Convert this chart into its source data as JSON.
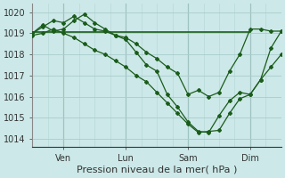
{
  "background_color": "#cce8e8",
  "grid_color": "#aacccc",
  "line_color": "#1a5c1a",
  "marker_color": "#1a5c1a",
  "ylabel_ticks": [
    1014,
    1015,
    1016,
    1017,
    1018,
    1019,
    1020
  ],
  "ylim": [
    1013.6,
    1020.4
  ],
  "xlim": [
    0,
    96
  ],
  "xlabel": "Pression niveau de la mer( hPa )",
  "xlabel_fontsize": 8,
  "tick_fontsize": 7,
  "vlines_x": [
    12,
    36,
    60,
    84
  ],
  "vlines_labels": [
    "Ven",
    "Lun",
    "Sam",
    "Dim"
  ],
  "series1_flat": {
    "x": [
      0,
      84
    ],
    "y": [
      1019.05,
      1019.05
    ]
  },
  "series2_zigzag": {
    "x": [
      0,
      4,
      8,
      12,
      16,
      20,
      24,
      28,
      32,
      36,
      40,
      44,
      48,
      52,
      56,
      60,
      64,
      68,
      72,
      76,
      80,
      84,
      88,
      92,
      96
    ],
    "y": [
      1019.0,
      1019.4,
      1019.1,
      1019.2,
      1019.6,
      1019.9,
      1019.5,
      1019.2,
      1018.9,
      1018.8,
      1018.5,
      1018.1,
      1017.8,
      1017.4,
      1017.1,
      1016.1,
      1016.3,
      1016.0,
      1016.2,
      1017.2,
      1018.0,
      1019.2,
      1019.2,
      1019.1,
      1019.1
    ]
  },
  "series3_descent": {
    "x": [
      0,
      4,
      8,
      12,
      16,
      20,
      24,
      28,
      32,
      36,
      40,
      44,
      48,
      52,
      56,
      60,
      64,
      68,
      72,
      76,
      80,
      84,
      88,
      92,
      96
    ],
    "y": [
      1018.9,
      1019.0,
      1019.2,
      1019.0,
      1018.8,
      1018.5,
      1018.2,
      1018.0,
      1017.7,
      1017.4,
      1017.0,
      1016.7,
      1016.2,
      1015.7,
      1015.2,
      1014.7,
      1014.3,
      1014.35,
      1014.4,
      1015.2,
      1015.9,
      1016.1,
      1016.8,
      1017.4,
      1018.0
    ]
  },
  "series4_upper": {
    "x": [
      0,
      4,
      8,
      12,
      16,
      20,
      24,
      28,
      32,
      36,
      40,
      44,
      48,
      52,
      56,
      60,
      64,
      68,
      72,
      76,
      80,
      84,
      88,
      92,
      96
    ],
    "y": [
      1019.0,
      1019.3,
      1019.6,
      1019.5,
      1019.8,
      1019.5,
      1019.2,
      1019.1,
      1018.9,
      1018.7,
      1018.1,
      1017.5,
      1017.2,
      1016.1,
      1015.5,
      1014.8,
      1014.35,
      1014.3,
      1015.1,
      1015.8,
      1016.2,
      1016.1,
      1016.8,
      1018.3,
      1019.1
    ]
  }
}
